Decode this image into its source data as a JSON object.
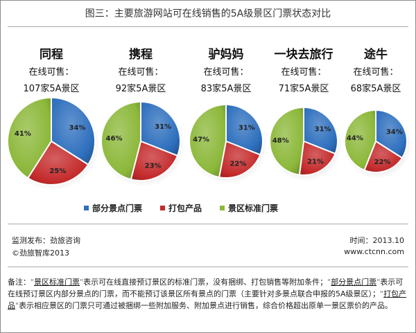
{
  "title": "图三：主要旅游网站可在线销售的5A级景区门票状态对比",
  "colors": {
    "partial": "#2e6fbe",
    "package": "#c42a2b",
    "standard": "#8cb83a"
  },
  "legend": [
    {
      "key": "partial",
      "label": "部分景点门票",
      "icon": "square-bullet"
    },
    {
      "key": "package",
      "label": "打包产品",
      "icon": "square-bullet"
    },
    {
      "key": "standard",
      "label": "景区标准门票",
      "icon": "square-bullet"
    }
  ],
  "chart_data": [
    {
      "type": "pie",
      "title": "同程",
      "subtitle": "在线可售：",
      "count_label": "107家5A景区",
      "count": 107,
      "slices": [
        {
          "name": "部分景点门票",
          "value": 34
        },
        {
          "name": "打包产品",
          "value": 25
        },
        {
          "name": "景区标准门票",
          "value": 41
        }
      ]
    },
    {
      "type": "pie",
      "title": "携程",
      "subtitle": "在线可售：",
      "count_label": "92家5A景区",
      "count": 92,
      "slices": [
        {
          "name": "部分景点门票",
          "value": 31
        },
        {
          "name": "打包产品",
          "value": 23
        },
        {
          "name": "景区标准门票",
          "value": 46
        }
      ]
    },
    {
      "type": "pie",
      "title": "驴妈妈",
      "subtitle": "在线可售：",
      "count_label": "83家5A景区",
      "count": 83,
      "slices": [
        {
          "name": "部分景点门票",
          "value": 31
        },
        {
          "name": "打包产品",
          "value": 22
        },
        {
          "name": "景区标准门票",
          "value": 47
        }
      ]
    },
    {
      "type": "pie",
      "title": "一块去旅行",
      "subtitle": "在线可售：",
      "count_label": "71家5A景区",
      "count": 71,
      "slices": [
        {
          "name": "部分景点门票",
          "value": 31
        },
        {
          "name": "打包产品",
          "value": 21
        },
        {
          "name": "景区标准门票",
          "value": 48
        }
      ]
    },
    {
      "type": "pie",
      "title": "途牛",
      "subtitle": "在线可售：",
      "count_label": "68家5A景区",
      "count": 68,
      "slices": [
        {
          "name": "部分景点门票",
          "value": 34
        },
        {
          "name": "打包产品",
          "value": 22
        },
        {
          "name": "景区标准门票",
          "value": 44
        }
      ]
    }
  ],
  "footer": {
    "source": "监测发布：劲旅咨询",
    "copyright": "©劲旅智库2013",
    "time": "时间：2013.10",
    "website": "www.ctcnn.com"
  },
  "note": {
    "prefix": "备注：",
    "key_standard": "景区标准门票",
    "text_standard": "表示可在线直接预订景区的标准门票，没有捆绑、打包销售等附加条件；",
    "key_partial": "部分景点门票",
    "text_partial": "表示可在线预订景区内部分景点的门票，而不能预订该景区所有景点的门票（主要针对多景点联合申报的5A级景区）；",
    "key_package": "打包产品",
    "text_package": "表示相应景区的门票只可通过被捆绑一些附加服务、附加景点进行销售，综合价格超出原单一景区票价的产品。"
  }
}
